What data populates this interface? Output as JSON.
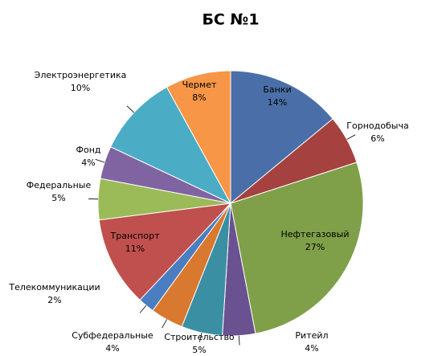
{
  "chart_data": {
    "type": "pie",
    "title": "БС №1",
    "categories": [
      "Банки",
      "Горнодобыча",
      "Нефтегазовый",
      "Ритейл",
      "Строительство",
      "Субфедеральные",
      "Телекоммуникации",
      "Транспорт",
      "Федеральные",
      "Фонд",
      "Электроэнергетика",
      "Чермет"
    ],
    "values": [
      14,
      6,
      27,
      4,
      5,
      4,
      2,
      11,
      5,
      4,
      10,
      8
    ],
    "value_labels": [
      "14%",
      "6%",
      "27%",
      "4%",
      "5%",
      "4%",
      "2%",
      "11%",
      "5%",
      "4%",
      "10%",
      "8%"
    ],
    "colors": [
      "#4a6fa8",
      "#a5413e",
      "#7f9f49",
      "#6a5190",
      "#3a8fa3",
      "#d9782f",
      "#4a7ec0",
      "#c0504d",
      "#9bbb59",
      "#8064a2",
      "#4bacc6",
      "#f79646"
    ]
  }
}
